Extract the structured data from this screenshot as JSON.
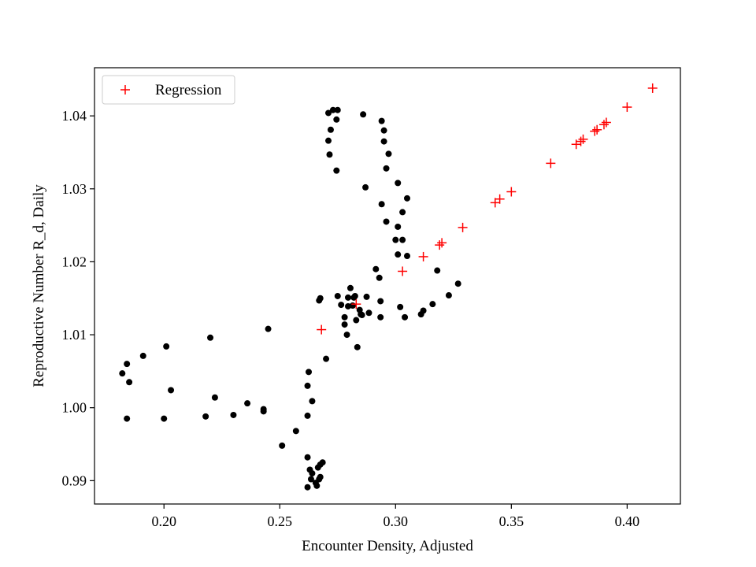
{
  "chart_data": {
    "type": "scatter",
    "xlabel": "Encounter Density, Adjusted",
    "ylabel": "Reproductive Number R_d, Daily",
    "xlim": [
      0.17,
      0.423
    ],
    "ylim": [
      0.9868,
      1.0466
    ],
    "xticks": [
      0.2,
      0.25,
      0.3,
      0.35,
      0.4
    ],
    "yticks": [
      0.99,
      1.0,
      1.01,
      1.02,
      1.03,
      1.04
    ],
    "grid": false,
    "legend_position": "top-left",
    "series": [
      {
        "name": "",
        "marker": "dot",
        "color": "#000000",
        "x": [
          0.273,
          0.275,
          0.271,
          0.2745,
          0.272,
          0.271,
          0.2715,
          0.2745,
          0.286,
          0.294,
          0.295,
          0.295,
          0.297,
          0.296,
          0.287,
          0.301,
          0.305,
          0.294,
          0.303,
          0.296,
          0.301,
          0.303,
          0.305,
          0.3,
          0.301,
          0.293,
          0.2805,
          0.2915,
          0.2825,
          0.2875,
          0.2675,
          0.267,
          0.275,
          0.2795,
          0.2765,
          0.2815,
          0.2845,
          0.285,
          0.278,
          0.283,
          0.278,
          0.2855,
          0.2935,
          0.2885,
          0.279,
          0.2835,
          0.282,
          0.2795,
          0.2935,
          0.302,
          0.304,
          0.311,
          0.312,
          0.316,
          0.318,
          0.323,
          0.327,
          0.245,
          0.22,
          0.201,
          0.191,
          0.184,
          0.182,
          0.185,
          0.203,
          0.222,
          0.236,
          0.243,
          0.243,
          0.23,
          0.218,
          0.2,
          0.184,
          0.2625,
          0.262,
          0.264,
          0.262,
          0.262,
          0.27,
          0.257,
          0.251,
          0.263,
          0.264,
          0.267,
          0.2675,
          0.2685,
          0.2675,
          0.266,
          0.2655,
          0.262,
          0.2635,
          0.2665
        ],
        "y": [
          1.0408,
          1.0408,
          1.0404,
          1.0395,
          1.0381,
          1.0366,
          1.0347,
          1.0325,
          1.0402,
          1.0393,
          1.038,
          1.0365,
          1.0348,
          1.0328,
          1.0302,
          1.0308,
          1.0287,
          1.0279,
          1.0268,
          1.0255,
          1.0248,
          1.023,
          1.0208,
          1.023,
          1.021,
          1.0178,
          1.0164,
          1.019,
          1.0153,
          1.0152,
          1.015,
          1.0147,
          1.0153,
          1.0151,
          1.0141,
          1.014,
          1.0134,
          1.0128,
          1.0124,
          1.012,
          1.0114,
          1.0127,
          1.0146,
          1.013,
          1.01,
          1.0083,
          1.0151,
          1.0139,
          1.0124,
          1.0138,
          1.0124,
          1.0128,
          1.0133,
          1.0142,
          1.0188,
          1.0154,
          1.017,
          1.0108,
          1.0096,
          1.0084,
          1.0071,
          1.006,
          1.0047,
          1.0035,
          1.0024,
          1.0014,
          1.0006,
          0.9998,
          0.9995,
          0.999,
          0.9988,
          0.9985,
          0.9985,
          1.0049,
          1.003,
          1.0009,
          0.9989,
          0.9932,
          1.0067,
          0.9968,
          0.9948,
          0.9915,
          0.991,
          0.9902,
          0.9922,
          0.9925,
          0.9905,
          0.9893,
          0.9897,
          0.9891,
          0.9902,
          0.9918
        ]
      },
      {
        "name": "Regression",
        "marker": "plus",
        "color": "#ff0000",
        "x": [
          0.268,
          0.283,
          0.303,
          0.312,
          0.319,
          0.32,
          0.329,
          0.343,
          0.345,
          0.35,
          0.367,
          0.378,
          0.38,
          0.381,
          0.386,
          0.387,
          0.39,
          0.391,
          0.4,
          0.411
        ],
        "y": [
          1.0107,
          1.0142,
          1.0187,
          1.0207,
          1.0223,
          1.0226,
          1.0247,
          1.0281,
          1.0286,
          1.0296,
          1.0335,
          1.0361,
          1.0365,
          1.0368,
          1.0379,
          1.0381,
          1.0388,
          1.0391,
          1.0412,
          1.0438
        ]
      }
    ]
  }
}
